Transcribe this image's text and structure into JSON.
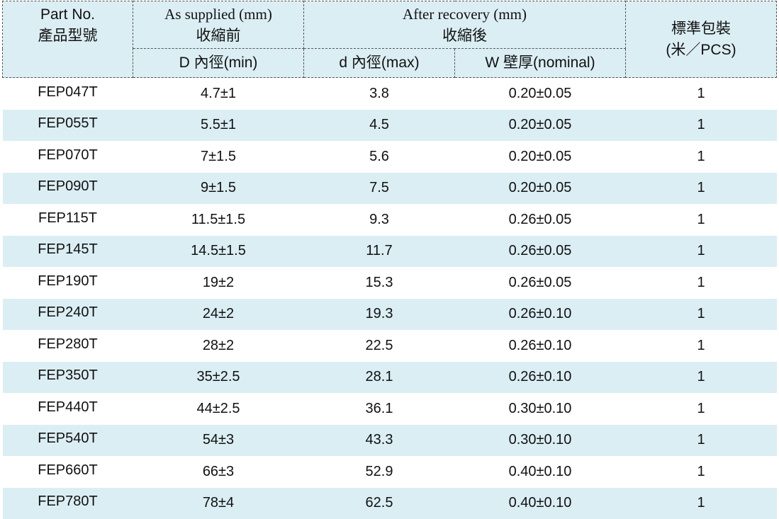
{
  "header": {
    "part_no": [
      "Part No.",
      "產品型號"
    ],
    "as_supplied": [
      "As supplied (mm)",
      "收縮前"
    ],
    "after_recovery": [
      "After recovery (mm)",
      "收縮後"
    ],
    "package": [
      "標準包裝",
      "(米／PCS)"
    ],
    "sub_columns": [
      "D 內徑(min)",
      "d 內徑(max)",
      "W 壁厚(nominal)"
    ]
  },
  "table": {
    "rows": [
      [
        "FEP047T",
        "4.7±1",
        "3.8",
        "0.20±0.05",
        "1"
      ],
      [
        "FEP055T",
        "5.5±1",
        "4.5",
        "0.20±0.05",
        "1"
      ],
      [
        "FEP070T",
        "7±1.5",
        "5.6",
        "0.20±0.05",
        "1"
      ],
      [
        "FEP090T",
        "9±1.5",
        "7.5",
        "0.20±0.05",
        "1"
      ],
      [
        "FEP115T",
        "11.5±1.5",
        "9.3",
        "0.26±0.05",
        "1"
      ],
      [
        "FEP145T",
        "14.5±1.5",
        "11.7",
        "0.26±0.05",
        "1"
      ],
      [
        "FEP190T",
        "19±2",
        "15.3",
        "0.26±0.05",
        "1"
      ],
      [
        "FEP240T",
        "24±2",
        "19.3",
        "0.26±0.10",
        "1"
      ],
      [
        "FEP280T",
        "28±2",
        "22.5",
        "0.26±0.10",
        "1"
      ],
      [
        "FEP350T",
        "35±2.5",
        "28.1",
        "0.26±0.10",
        "1"
      ],
      [
        "FEP440T",
        "44±2.5",
        "36.1",
        "0.30±0.10",
        "1"
      ],
      [
        "FEP540T",
        "54±3",
        "43.3",
        "0.30±0.10",
        "1"
      ],
      [
        "FEP660T",
        "66±3",
        "52.9",
        "0.40±0.10",
        "1"
      ],
      [
        "FEP780T",
        "78±4",
        "62.5",
        "0.40±0.10",
        "1"
      ]
    ]
  }
}
